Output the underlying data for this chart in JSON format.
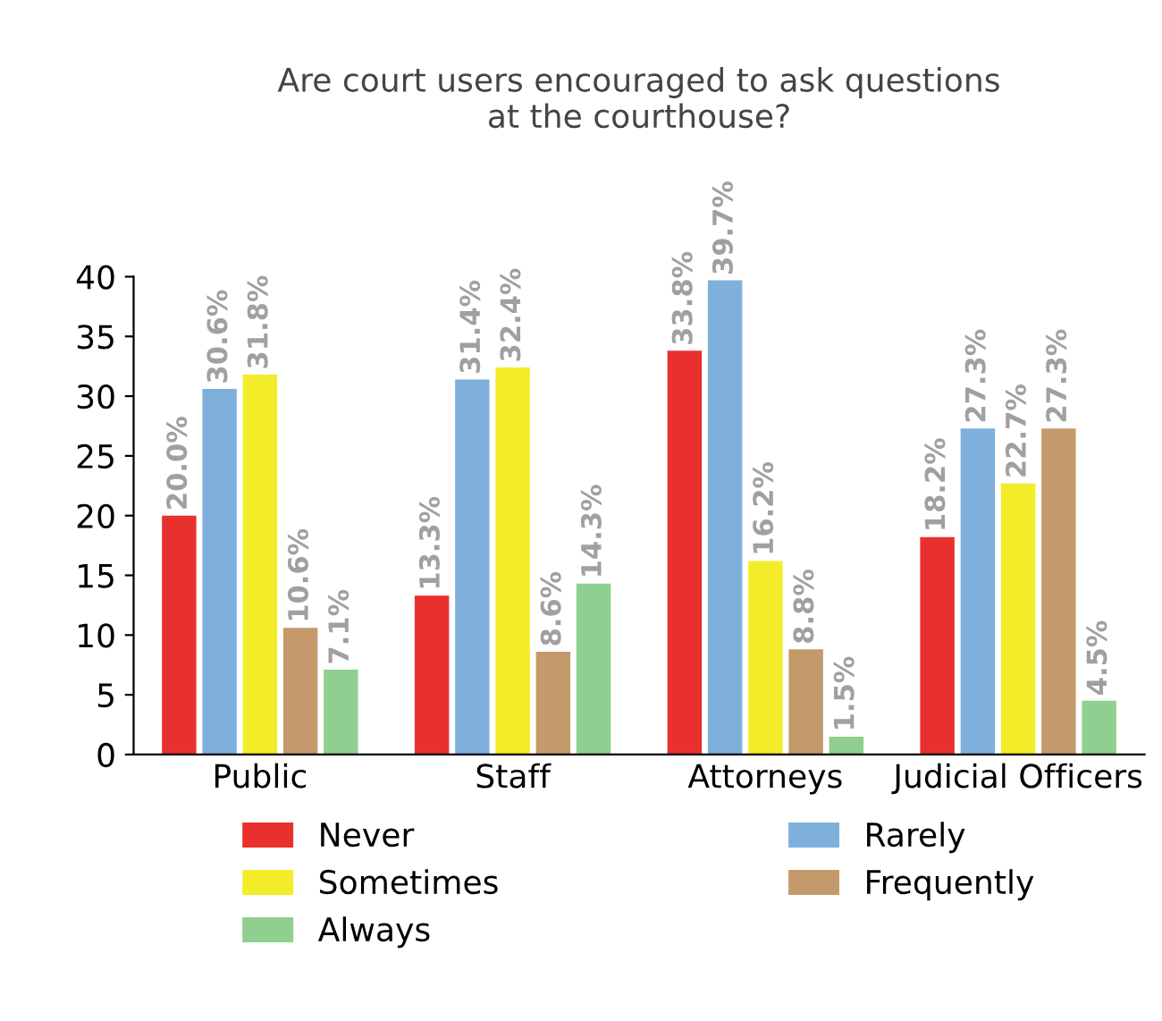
{
  "chart_data": {
    "type": "bar",
    "title": "Are court users encouraged to ask questions\nat the courthouse?",
    "categories": [
      "Public",
      "Staff",
      "Attorneys",
      "Judicial Officers"
    ],
    "series": [
      {
        "name": "Never",
        "color": "#e8312f",
        "values": [
          20.0,
          13.3,
          33.8,
          18.2
        ],
        "value_labels": [
          "20.0%",
          "13.3%",
          "33.8%",
          "18.2%"
        ]
      },
      {
        "name": "Rarely",
        "color": "#7fb0dc",
        "values": [
          30.6,
          31.4,
          39.7,
          27.3
        ],
        "value_labels": [
          "30.6%",
          "31.4%",
          "39.7%",
          "27.3%"
        ]
      },
      {
        "name": "Sometimes",
        "color": "#f3ec28",
        "values": [
          31.8,
          32.4,
          16.2,
          22.7
        ],
        "value_labels": [
          "31.8%",
          "32.4%",
          "16.2%",
          "22.7%"
        ]
      },
      {
        "name": "Frequently",
        "color": "#c49a6c",
        "values": [
          10.6,
          8.6,
          8.8,
          27.3
        ],
        "value_labels": [
          "10.6%",
          "8.6%",
          "8.8%",
          "27.3%"
        ]
      },
      {
        "name": "Always",
        "color": "#8fcf8f",
        "values": [
          7.1,
          14.3,
          1.5,
          4.5
        ],
        "value_labels": [
          "7.1%",
          "14.3%",
          "1.5%",
          "4.5%"
        ]
      }
    ],
    "ylim": [
      0,
      40
    ],
    "yticks": [
      0,
      5,
      10,
      15,
      20,
      25,
      30,
      35,
      40
    ],
    "grid": false,
    "legend": "bottom"
  }
}
